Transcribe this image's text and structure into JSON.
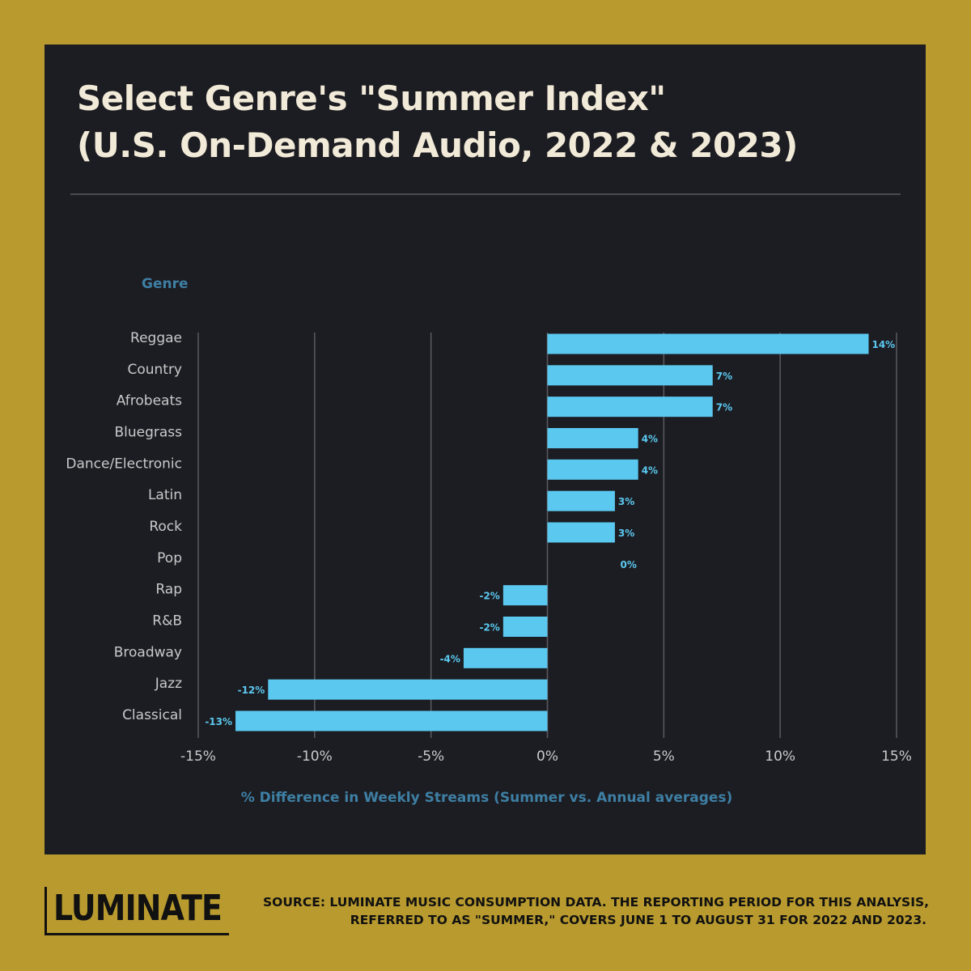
{
  "title_lines": [
    "Select Genre's \"Summer Index\"",
    "(U.S. On-Demand Audio, 2022 & 2023)"
  ],
  "legend_title": "Genre",
  "footer": {
    "logo": "LUMINATE",
    "source_lines": [
      "SOURCE: LUMINATE MUSIC CONSUMPTION DATA. THE REPORTING PERIOD FOR THIS ANALYSIS,",
      "REFERRED TO AS \"SUMMER,\" COVERS JUNE 1 TO AUGUST 31 FOR 2022 AND 2023."
    ]
  },
  "colors": {
    "background": "#b89a2e",
    "panel": "#1c1d22",
    "bar": "#5bc8f0",
    "title": "#f2ead8",
    "accent_text": "#3e7fa4",
    "grid": "#5a5b60",
    "label": "#c9c9cc"
  },
  "chart_data": {
    "type": "bar",
    "orientation": "horizontal",
    "xlabel": "% Difference in Weekly Streams (Summer vs. Annual averages)",
    "ylabel": "Genre",
    "xlim": [
      -15,
      15
    ],
    "xticks": [
      -15,
      -10,
      -5,
      0,
      5,
      10,
      15
    ],
    "xtick_labels": [
      "-15%",
      "-10%",
      "-5%",
      "0%",
      "5%",
      "10%",
      "15%"
    ],
    "grid": "vertical",
    "categories": [
      "Reggae",
      "Country",
      "Afrobeats",
      "Bluegrass",
      "Dance/Electronic",
      "Latin",
      "Rock",
      "Pop",
      "Rap",
      "R&B",
      "Broadway",
      "Jazz",
      "Classical"
    ],
    "values": [
      13.8,
      7.1,
      7.1,
      3.9,
      3.9,
      2.9,
      2.9,
      0,
      -1.9,
      -1.9,
      -3.6,
      -12.0,
      -13.4
    ],
    "data_labels": [
      "14%",
      "7%",
      "7%",
      "4%",
      "4%",
      "3%",
      "3%",
      "0%",
      "-2%",
      "-2%",
      "-4%",
      "-12%",
      "-13%"
    ]
  }
}
